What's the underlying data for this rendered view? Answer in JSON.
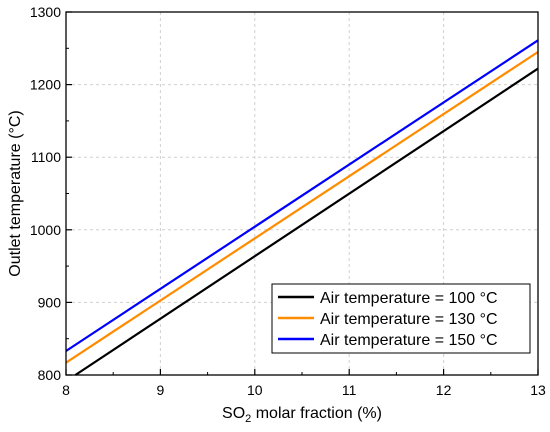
{
  "chart_data": {
    "type": "line",
    "title": "",
    "xlabel": {
      "main": "SO",
      "subscript": "2",
      "rest": " molar fraction (%)"
    },
    "ylabel": "Outlet temperature (°C)",
    "xlim": [
      8,
      13
    ],
    "ylim": [
      800,
      1300
    ],
    "xticks": [
      "8",
      "9",
      "10",
      "11",
      "12",
      "13"
    ],
    "yticks": [
      "800",
      "900",
      "1000",
      "1100",
      "1200",
      "1300"
    ],
    "grid": true,
    "legend_position": "bottom-right",
    "series": [
      {
        "name": "Air temperature = 100 °C",
        "color": "#000000",
        "x": [
          8.1,
          13
        ],
        "y": [
          800,
          1222
        ]
      },
      {
        "name": "Air temperature = 130 °C",
        "color": "#ff8c00",
        "x": [
          8,
          13
        ],
        "y": [
          817,
          1245
        ]
      },
      {
        "name": "Air temperature = 150 °C",
        "color": "#0000ff",
        "x": [
          8,
          13
        ],
        "y": [
          833,
          1261
        ]
      }
    ]
  }
}
